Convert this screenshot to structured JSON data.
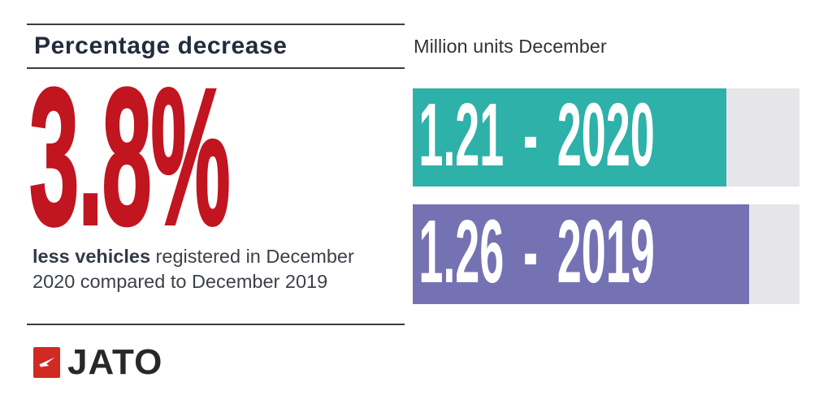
{
  "left": {
    "heading": "Percentage decrease",
    "big_number": "3.8%",
    "description": {
      "bold": "less vehicles",
      "rest": " registered in December 2020 compared to December 2019"
    },
    "logo": {
      "text": "JATO",
      "icon": "jato-arrow-icon",
      "square_color": "#d02a22"
    }
  },
  "right": {
    "label": "Million units December",
    "bars": [
      {
        "label": "1.21 - 2020",
        "value": 1.21,
        "year": "2020",
        "color": "#2db1a8",
        "fill_pct": 81
      },
      {
        "label": "1.26 - 2019",
        "value": 1.26,
        "year": "2019",
        "color": "#7572b3",
        "fill_pct": 87
      }
    ],
    "track_color": "#e6e5e8"
  },
  "colors": {
    "accent_red": "#c11520",
    "logo_red": "#d02a22",
    "heading_text": "#232c3e",
    "body_text": "#3c4148",
    "bar_2020_teal": "#2db1a8",
    "bar_2019_purple": "#7572b3",
    "track_gray": "#e6e5e8",
    "rule_gray": "#3c3c3c",
    "background": "#ffffff"
  },
  "chart_data": {
    "type": "bar",
    "orientation": "horizontal",
    "title": "Million units December",
    "categories": [
      "2020",
      "2019"
    ],
    "values": [
      1.21,
      1.26
    ],
    "unit": "million units",
    "bar_colors": [
      "#2db1a8",
      "#7572b3"
    ],
    "bar_labels": [
      "1.21 - 2020",
      "1.26 - 2019"
    ],
    "grid": false,
    "legend": false,
    "annotation": "3.8% less vehicles registered in December 2020 compared to December 2019"
  }
}
